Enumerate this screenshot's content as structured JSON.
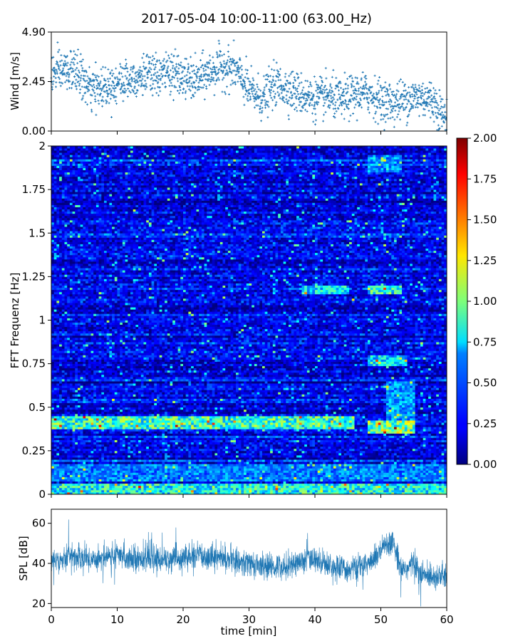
{
  "title": "2017-05-04 10:00-11:00 (63.00_Hz)",
  "colors": {
    "series": "#1f77b4",
    "frame": "#000000"
  },
  "chart_data": [
    {
      "type": "scatter",
      "name": "wind",
      "ylabel": "Wind [m/s]",
      "xlim": [
        0,
        60
      ],
      "ylim": [
        0,
        4.9
      ],
      "yticks": [
        0.0,
        2.45,
        4.9
      ],
      "ytick_labels": [
        "0.00",
        "2.45",
        "4.90"
      ],
      "xticks": [
        0,
        10,
        20,
        30,
        40,
        50,
        60
      ],
      "trend": {
        "x": [
          0,
          2,
          4,
          6,
          8,
          10,
          12,
          14,
          16,
          18,
          20,
          22,
          24,
          26,
          28,
          30,
          32,
          34,
          36,
          38,
          40,
          42,
          44,
          46,
          48,
          50,
          52,
          54,
          56,
          58,
          60
        ],
        "y": [
          2.8,
          3.0,
          2.9,
          2.0,
          2.2,
          2.4,
          2.6,
          2.8,
          2.7,
          3.0,
          2.6,
          2.5,
          2.9,
          3.2,
          3.0,
          2.0,
          1.6,
          2.3,
          2.1,
          1.8,
          1.6,
          1.7,
          1.5,
          1.8,
          1.9,
          1.5,
          1.4,
          1.6,
          1.7,
          1.5,
          0.5
        ]
      },
      "marker": "+"
    },
    {
      "type": "heatmap",
      "name": "spectrogram",
      "ylabel": "FFT Frequenz [Hz]",
      "xlim": [
        0,
        60
      ],
      "ylim": [
        0,
        2
      ],
      "yticks": [
        0,
        0.25,
        0.5,
        0.75,
        1,
        1.25,
        1.5,
        1.75,
        2
      ],
      "ytick_labels": [
        "0",
        "0.25",
        "0.5",
        "0.75",
        "1",
        "1.25",
        "1.5",
        "1.75",
        "2"
      ],
      "colormap": "jet",
      "colorbar": {
        "range": [
          0,
          2
        ],
        "ticks": [
          0,
          0.25,
          0.5,
          0.75,
          1.0,
          1.25,
          1.5,
          1.75,
          2.0
        ],
        "tick_labels": [
          "0.00",
          "0.25",
          "0.50",
          "0.75",
          "1.00",
          "1.25",
          "1.50",
          "1.75",
          "2.00"
        ]
      },
      "base_level": 0.22,
      "features": [
        {
          "f_min": 0.37,
          "f_max": 0.45,
          "t_min": 0,
          "t_max": 46,
          "level": 0.95
        },
        {
          "f_min": 0.0,
          "f_max": 0.06,
          "t_min": 0,
          "t_max": 60,
          "level": 0.85
        },
        {
          "f_min": 0.08,
          "f_max": 0.18,
          "t_min": 0,
          "t_max": 60,
          "level": 0.55
        },
        {
          "f_min": 0.35,
          "f_max": 0.42,
          "t_min": 48,
          "t_max": 55,
          "level": 1.1
        },
        {
          "f_min": 1.15,
          "f_max": 1.2,
          "t_min": 38,
          "t_max": 45,
          "level": 0.8
        },
        {
          "f_min": 1.15,
          "f_max": 1.2,
          "t_min": 48,
          "t_max": 53,
          "level": 0.9
        },
        {
          "f_min": 0.74,
          "f_max": 0.8,
          "t_min": 48,
          "t_max": 54,
          "level": 0.75
        },
        {
          "f_min": 0.4,
          "f_max": 0.65,
          "t_min": 51,
          "t_max": 55,
          "level": 0.6
        },
        {
          "f_min": 1.85,
          "f_max": 1.95,
          "t_min": 48,
          "t_max": 53,
          "level": 0.6
        }
      ]
    },
    {
      "type": "line",
      "name": "spl",
      "ylabel": "SPL [dB]",
      "xlabel": "time [min]",
      "xlim": [
        0,
        60
      ],
      "ylim": [
        18,
        67
      ],
      "yticks": [
        20,
        40,
        60
      ],
      "ytick_labels": [
        "20",
        "40",
        "60"
      ],
      "xticks": [
        0,
        10,
        20,
        30,
        40,
        50,
        60
      ],
      "xtick_labels": [
        "0",
        "10",
        "20",
        "30",
        "40",
        "50",
        "60"
      ],
      "trend": {
        "x": [
          0,
          3,
          6,
          9,
          12,
          15,
          18,
          21,
          24,
          27,
          30,
          33,
          36,
          39,
          41,
          43,
          45,
          47,
          49,
          50,
          51,
          52,
          53,
          54,
          55,
          56,
          58,
          60
        ],
        "y": [
          41,
          44,
          42,
          44,
          43,
          42,
          42,
          43,
          44,
          42,
          40,
          38,
          39,
          42,
          41,
          38,
          37,
          38,
          42,
          46,
          49,
          50,
          38,
          37,
          41,
          34,
          34,
          33
        ]
      }
    }
  ]
}
